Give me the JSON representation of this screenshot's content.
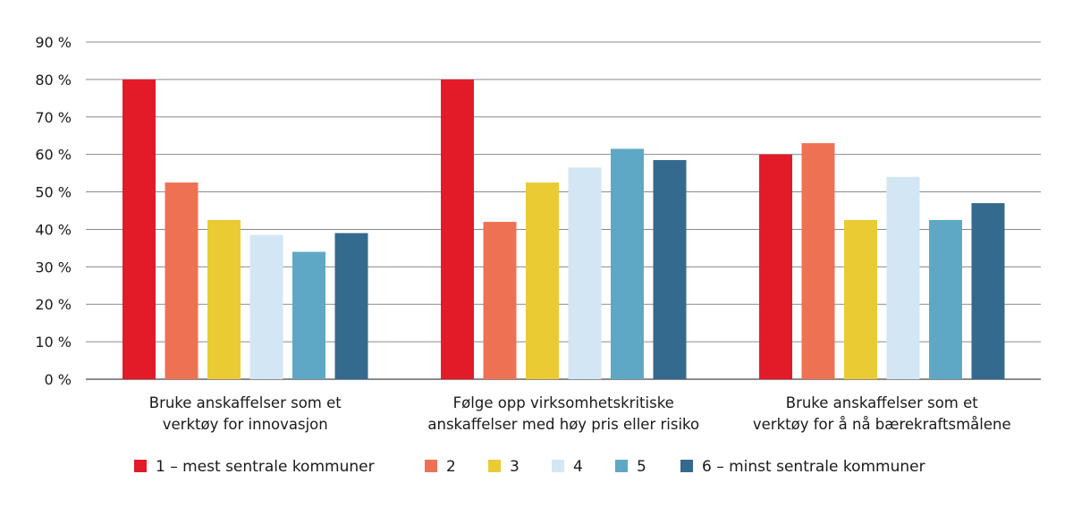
{
  "chart_data": {
    "type": "bar",
    "categories": [
      [
        "Bruke anskaffelser som et",
        "verktøy for innovasjon"
      ],
      [
        "Følge opp virksomhetskritiske",
        "anskaffelser med høy pris eller risiko"
      ],
      [
        "Bruke anskaffelser som et",
        "verktøy for å nå bærekraftsmålene"
      ]
    ],
    "series": [
      {
        "name": "1 – mest sentrale kommuner",
        "color": "#e31b29",
        "values": [
          80,
          80,
          60
        ]
      },
      {
        "name": "2",
        "color": "#ef7153",
        "values": [
          52.5,
          42,
          63
        ]
      },
      {
        "name": "3",
        "color": "#ebcb33",
        "values": [
          42.5,
          52.5,
          42.5
        ]
      },
      {
        "name": "4",
        "color": "#d3e6f4",
        "values": [
          38.5,
          56.5,
          54
        ]
      },
      {
        "name": "5",
        "color": "#5fa8c5",
        "values": [
          34,
          61.5,
          42.5
        ]
      },
      {
        "name": "6 – minst sentrale kommuner",
        "color": "#356a8f",
        "values": [
          39,
          58.5,
          47
        ]
      }
    ],
    "yticks": [
      "0 %",
      "10 %",
      "20 %",
      "30 %",
      "40 %",
      "50 %",
      "60 %",
      "70 %",
      "80 %",
      "90 %"
    ],
    "ylim": [
      0,
      90
    ],
    "grid": true,
    "legend_position": "bottom",
    "title": "",
    "xlabel": "",
    "ylabel": ""
  }
}
